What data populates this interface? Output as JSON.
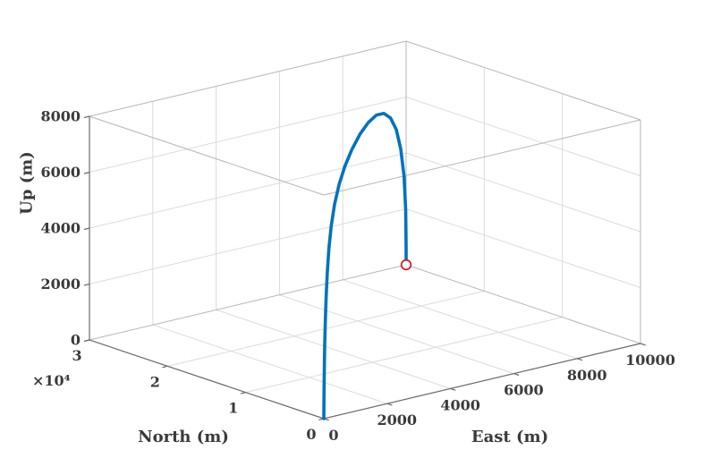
{
  "figure": {
    "background": "#ffffff"
  },
  "chart_data": {
    "type": "line",
    "plot_kind": "3d-trajectory",
    "title": "",
    "grid": true,
    "x_axis": {
      "label": "East (m)",
      "lim": [
        0,
        10000
      ],
      "ticks": [
        0,
        2000,
        4000,
        6000,
        8000,
        10000
      ],
      "tick_labels": [
        "0",
        "2000",
        "4000",
        "6000",
        "8000",
        "10000"
      ]
    },
    "y_axis": {
      "label": "North (m)",
      "lim": [
        0,
        30000
      ],
      "ticks": [
        0,
        10000,
        20000,
        30000
      ],
      "tick_labels": [
        "0",
        "1",
        "2",
        "3"
      ],
      "exponent_label": "×10⁴"
    },
    "z_axis": {
      "label": "Up (m)",
      "lim": [
        0,
        8000
      ],
      "ticks": [
        0,
        2000,
        4000,
        6000,
        8000
      ],
      "tick_labels": [
        "0",
        "2000",
        "4000",
        "6000",
        "8000"
      ]
    },
    "series": [
      {
        "name": "trajectory",
        "color": "#0072BD",
        "line_width": 3.6,
        "points_enu": [
          [
            0,
            0,
            0
          ],
          [
            10,
            30,
            500
          ],
          [
            30,
            90,
            1100
          ],
          [
            60,
            180,
            1800
          ],
          [
            110,
            330,
            2600
          ],
          [
            180,
            540,
            3400
          ],
          [
            280,
            840,
            4200
          ],
          [
            420,
            1260,
            5000
          ],
          [
            620,
            1860,
            5750
          ],
          [
            900,
            2700,
            6400
          ],
          [
            1300,
            3900,
            6950
          ],
          [
            1850,
            5550,
            7350
          ],
          [
            2550,
            7650,
            7620
          ],
          [
            3400,
            10200,
            7750
          ],
          [
            4400,
            13200,
            7760
          ],
          [
            5400,
            16200,
            7620
          ],
          [
            6400,
            19200,
            7340
          ],
          [
            7300,
            21900,
            6900
          ],
          [
            8100,
            24300,
            6300
          ],
          [
            8800,
            26400,
            5500
          ],
          [
            9350,
            28050,
            4500
          ],
          [
            9750,
            29250,
            3300
          ],
          [
            9950,
            29850,
            2000
          ],
          [
            9980,
            29940,
            1200
          ],
          [
            9995,
            29985,
            600
          ],
          [
            10000,
            30000,
            0
          ]
        ]
      }
    ],
    "end_marker": {
      "name": "end-point-marker",
      "shape": "open-circle",
      "color": "#D61F26",
      "point_enu": [
        10000,
        30000,
        0
      ]
    },
    "colors": {
      "grid": "#dbdbdb",
      "box_edges": "#b5b5b5",
      "axis_lines": "#6b6b6b",
      "text": "#3a3a3a"
    }
  }
}
